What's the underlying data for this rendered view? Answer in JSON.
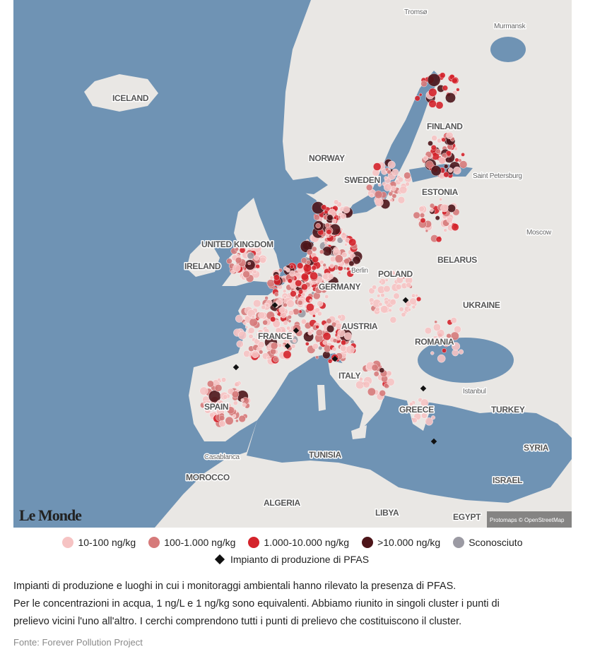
{
  "map": {
    "labels": [
      "Tromsø",
      "Murmansk",
      "ICELAND",
      "FINLAND",
      "NORWAY",
      "SWEDEN",
      "Saint Petersburg",
      "ESTONIA",
      "Moscow",
      "UNITED KINGDOM",
      "IRELAND",
      "BELARUS",
      "POLAND",
      "Berlin",
      "UKRAINE",
      "GERMANY",
      "AUSTRIA",
      "ROMANIA",
      "FRANCE",
      "ITALY",
      "SPAIN",
      "Istanbul",
      "GREECE",
      "TURKEY",
      "SYRIA",
      "TUNISIA",
      "Casablanca",
      "MOROCCO",
      "ALGERIA",
      "LIBYA",
      "EGYPT",
      "ISRAEL"
    ],
    "cities": [
      "Tromsø",
      "Murmansk",
      "Saint Petersburg",
      "Moscow",
      "Berlin",
      "Istanbul",
      "Casablanca"
    ],
    "brand": "Le Monde",
    "attribution": "Protomaps © OpenStreetMap"
  },
  "legend": {
    "items": [
      {
        "label": "10-100 ng/kg",
        "color": "#f6c3c3"
      },
      {
        "label": "100-1.000 ng/kg",
        "color": "#d67a7a"
      },
      {
        "label": "1.000-10.000 ng/kg",
        "color": "#d4232b"
      },
      {
        "label": ">10.000 ng/kg",
        "color": "#4d1519"
      },
      {
        "label": "Sconosciuto",
        "color": "#9b9aa3"
      }
    ],
    "plant": {
      "label": "Impianto di produzione di PFAS",
      "color": "#111111"
    }
  },
  "caption": [
    "Impianti di produzione e luoghi in cui i monitoraggi ambientali hanno rilevato la presenza di PFAS.",
    "Per le concentrazioni in acqua, 1 ng/L e 1 ng/kg sono equivalenti. Abbiamo riunito in singoli cluster i punti di prelievo vicini l'uno all'altro. I cerchi comprendono tutti i punti di prelievo che costituiscono il cluster."
  ],
  "source": "Fonte: Forever Pollution Project"
}
